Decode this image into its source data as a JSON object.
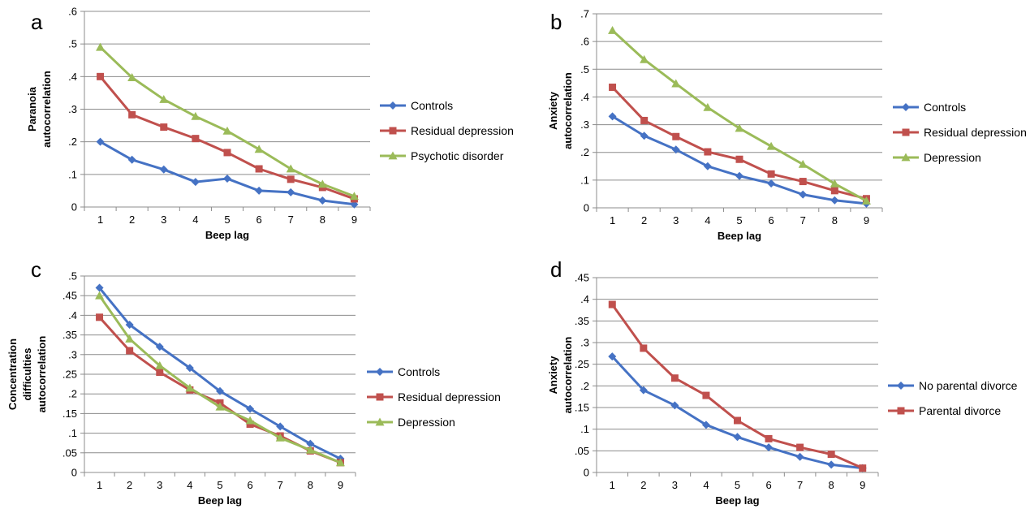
{
  "chart_data": [
    {
      "type": "line",
      "panel": "a",
      "x": [
        1,
        2,
        3,
        4,
        5,
        6,
        7,
        8,
        9
      ],
      "xlabel": "Beep lag",
      "ylabel": [
        "Paranoia",
        "autocorrelation"
      ],
      "ylim": [
        0,
        0.6
      ],
      "yticks": [
        0,
        0.1,
        0.2,
        0.3,
        0.4,
        0.5,
        0.6
      ],
      "ytick_labels": [
        "0",
        ".1",
        ".2",
        ".3",
        ".4",
        ".5",
        ".6"
      ],
      "grid": true,
      "legend_position": "right",
      "series": [
        {
          "name": "Controls",
          "color": "#4572C4",
          "marker": "diamond",
          "values": [
            0.2,
            0.145,
            0.115,
            0.077,
            0.087,
            0.05,
            0.045,
            0.02,
            0.008
          ]
        },
        {
          "name": "Residual depression",
          "color": "#C0504D",
          "marker": "square",
          "values": [
            0.4,
            0.283,
            0.245,
            0.21,
            0.167,
            0.117,
            0.085,
            0.06,
            0.025
          ]
        },
        {
          "name": "Psychotic disorder",
          "color": "#9BBB59",
          "marker": "triangle",
          "values": [
            0.49,
            0.397,
            0.33,
            0.278,
            0.233,
            0.177,
            0.117,
            0.07,
            0.033
          ]
        }
      ]
    },
    {
      "type": "line",
      "panel": "b",
      "x": [
        1,
        2,
        3,
        4,
        5,
        6,
        7,
        8,
        9
      ],
      "xlabel": "Beep lag",
      "ylabel": [
        "Anxiety",
        "autocorrelation"
      ],
      "ylim": [
        0,
        0.7
      ],
      "yticks": [
        0,
        0.1,
        0.2,
        0.3,
        0.4,
        0.5,
        0.6,
        0.7
      ],
      "ytick_labels": [
        "0",
        ".1",
        ".2",
        ".3",
        ".4",
        ".5",
        ".6",
        ".7"
      ],
      "grid": true,
      "legend_position": "right",
      "series": [
        {
          "name": "Controls",
          "color": "#4572C4",
          "marker": "diamond",
          "values": [
            0.33,
            0.26,
            0.21,
            0.15,
            0.115,
            0.088,
            0.048,
            0.027,
            0.015
          ]
        },
        {
          "name": "Residual depression",
          "color": "#C0504D",
          "marker": "square",
          "values": [
            0.435,
            0.315,
            0.257,
            0.202,
            0.175,
            0.122,
            0.095,
            0.062,
            0.033
          ]
        },
        {
          "name": "Depression",
          "color": "#9BBB59",
          "marker": "triangle",
          "values": [
            0.64,
            0.535,
            0.448,
            0.362,
            0.287,
            0.222,
            0.157,
            0.087,
            0.025
          ]
        }
      ]
    },
    {
      "type": "line",
      "panel": "c",
      "x": [
        1,
        2,
        3,
        4,
        5,
        6,
        7,
        8,
        9
      ],
      "xlabel": "Beep lag",
      "ylabel": [
        "Concentration",
        "difficulties",
        "autocorrelation"
      ],
      "ylim": [
        0,
        0.5
      ],
      "yticks": [
        0,
        0.05,
        0.1,
        0.15,
        0.2,
        0.25,
        0.3,
        0.35,
        0.4,
        0.45,
        0.5
      ],
      "ytick_labels": [
        "0",
        ".05",
        ".1",
        ".15",
        ".2",
        ".25",
        ".3",
        ".35",
        ".4",
        ".45",
        ".5"
      ],
      "grid": true,
      "legend_position": "right",
      "series": [
        {
          "name": "Controls",
          "color": "#4572C4",
          "marker": "diamond",
          "values": [
            0.47,
            0.376,
            0.32,
            0.266,
            0.207,
            0.162,
            0.117,
            0.073,
            0.035
          ]
        },
        {
          "name": "Residual depression",
          "color": "#C0504D",
          "marker": "square",
          "values": [
            0.395,
            0.31,
            0.255,
            0.21,
            0.177,
            0.123,
            0.093,
            0.055,
            0.025
          ]
        },
        {
          "name": "Depression",
          "color": "#9BBB59",
          "marker": "triangle",
          "values": [
            0.45,
            0.34,
            0.272,
            0.215,
            0.167,
            0.132,
            0.088,
            0.057,
            0.025
          ]
        }
      ]
    },
    {
      "type": "line",
      "panel": "d",
      "x": [
        1,
        2,
        3,
        4,
        5,
        6,
        7,
        8,
        9
      ],
      "xlabel": "Beep lag",
      "ylabel": [
        "Anxiety",
        "autocorrelation"
      ],
      "ylim": [
        0,
        0.45
      ],
      "yticks": [
        0,
        0.05,
        0.1,
        0.15,
        0.2,
        0.25,
        0.3,
        0.35,
        0.4,
        0.45
      ],
      "ytick_labels": [
        "0",
        ".05",
        ".1",
        ".15",
        ".2",
        ".25",
        ".3",
        ".35",
        ".4",
        ".45"
      ],
      "grid": true,
      "legend_position": "right",
      "series": [
        {
          "name": "No parental divorce",
          "color": "#4572C4",
          "marker": "diamond",
          "values": [
            0.268,
            0.19,
            0.155,
            0.11,
            0.082,
            0.058,
            0.036,
            0.018,
            0.01
          ]
        },
        {
          "name": "Parental divorce",
          "color": "#C0504D",
          "marker": "square",
          "values": [
            0.388,
            0.287,
            0.218,
            0.178,
            0.12,
            0.078,
            0.058,
            0.042,
            0.01
          ]
        }
      ]
    }
  ]
}
